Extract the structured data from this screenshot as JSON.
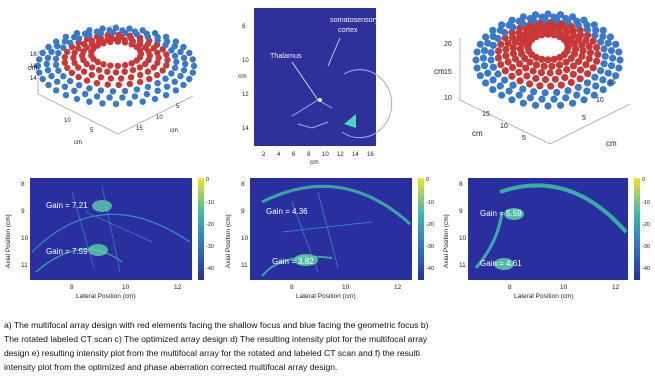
{
  "figure": {
    "panel_a": {
      "zlabel": "cm",
      "xlabel": "cm",
      "ylabel": "cm",
      "z_ticks": [
        "18",
        "16",
        "14"
      ],
      "x_ticks": [
        "10",
        "5"
      ],
      "y_ticks": [
        "15",
        "10",
        "5"
      ]
    },
    "panel_b": {
      "label_thalamus": "Thalamus",
      "label_cortex_1": "somatosensory",
      "label_cortex_2": "cortex",
      "xlabel": "cm",
      "ylabel": "cm",
      "x_ticks": [
        "2",
        "4",
        "6",
        "8",
        "10",
        "12",
        "14",
        "16"
      ],
      "y_ticks": [
        "8",
        "10",
        "12",
        "14"
      ]
    },
    "panel_c": {
      "zlabel": "cm",
      "xlabel": "cm",
      "ylabel": "cm",
      "z_ticks": [
        "20",
        "15",
        "10"
      ],
      "x_ticks": [
        "15",
        "10",
        "5"
      ],
      "y_ticks": [
        "15",
        "10",
        "5"
      ]
    },
    "panel_d": {
      "xlabel": "Lateral Position (cm)",
      "ylabel": "Axial Position (cm)",
      "x_ticks": [
        "8",
        "10",
        "12"
      ],
      "y_ticks": [
        "8",
        "9",
        "10",
        "11"
      ],
      "cbar_ticks": [
        "-10",
        "-20",
        "-30",
        "-40"
      ],
      "cbar_top": "0",
      "gain_labels": [
        "Gain = 7.21",
        "Gain = 7.59"
      ]
    },
    "panel_e": {
      "xlabel": "Lateral Position (cm)",
      "ylabel": "Axial Position (cm)",
      "x_ticks": [
        "8",
        "10",
        "12"
      ],
      "y_ticks": [
        "8",
        "9",
        "10",
        "11"
      ],
      "cbar_ticks": [
        "-10",
        "-20",
        "-30",
        "-40"
      ],
      "cbar_top": "0",
      "gain_labels": [
        "Gain = 4.36",
        "Gain = 3.82"
      ]
    },
    "panel_f": {
      "xlabel": "Lateral Position (cm)",
      "ylabel": "Axial Position (cm)",
      "x_ticks": [
        "8",
        "10",
        "12"
      ],
      "y_ticks": [
        "8",
        "9",
        "10",
        "11"
      ],
      "cbar_ticks": [
        "-10",
        "-20",
        "-30",
        "-40"
      ],
      "cbar_top": "0",
      "gain_labels": [
        "Gain = 5.59",
        "Gain = 4.61"
      ]
    },
    "colors": {
      "red_element": "#c83838",
      "blue_element": "#3a78c8",
      "heatmap_bg": "#2a2fa0",
      "heatmap_ring": "#3fb8a8",
      "ct_bg": "#30309a"
    }
  },
  "caption": {
    "lines": [
      "a) The multifocal array design with red elements facing the shallow focus and blue facing the geometric focus b)",
      "The rotated labeled CT scan c) The optimized array design d) The resulting intensity plot for the multifocal array",
      "design e) resulting intensity plot from the multifocal array for the rotated and labeled CT scan and f) the resulti",
      "intensity plot from the optimized and phase aberration corrected multifocal array design."
    ]
  }
}
